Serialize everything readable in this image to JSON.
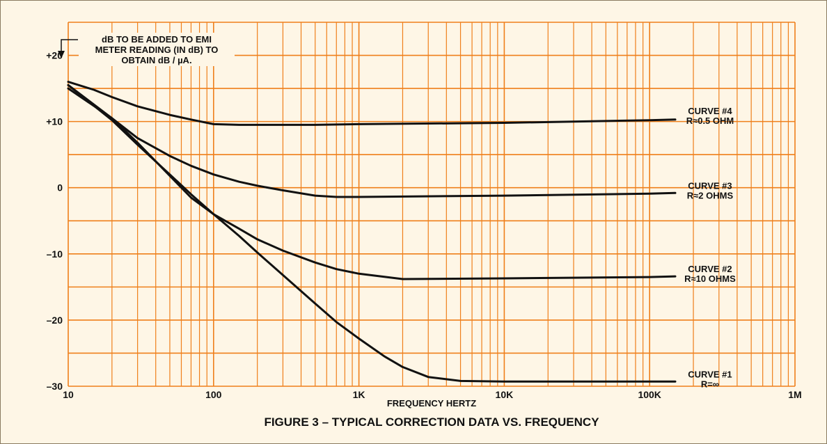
{
  "colors": {
    "background": "#fef6e6",
    "grid": "#ef7f1a",
    "curve": "#111111"
  },
  "chart_data": {
    "type": "line",
    "title": "FIGURE 3 – TYPICAL CORRECTION DATA VS. FREQUENCY",
    "xlabel": "FREQUENCY HERTZ",
    "ylabel": "",
    "x_scale": "log",
    "xlim": [
      10,
      1000000
    ],
    "ylim": [
      -30,
      25
    ],
    "grid": true,
    "x_ticks": [
      {
        "value": 10,
        "label": "10"
      },
      {
        "value": 100,
        "label": "100"
      },
      {
        "value": 1000,
        "label": "1K"
      },
      {
        "value": 10000,
        "label": "10K"
      },
      {
        "value": 100000,
        "label": "100K"
      },
      {
        "value": 1000000,
        "label": "1M"
      }
    ],
    "y_ticks": [
      {
        "value": 20,
        "label": "+20"
      },
      {
        "value": 10,
        "label": "+10"
      },
      {
        "value": 0,
        "label": "0"
      },
      {
        "value": -10,
        "label": "–10"
      },
      {
        "value": -20,
        "label": "–20"
      },
      {
        "value": -30,
        "label": "–30"
      }
    ],
    "annotation": {
      "lines": [
        "dB TO BE ADDED TO EMI",
        "METER READING (IN dB) TO",
        "OBTAIN dB / µA."
      ]
    },
    "series": [
      {
        "name": "CURVE #4",
        "label_lines": [
          "CURVE #4",
          "R≈0.5 OHM"
        ],
        "x": [
          10,
          15,
          20,
          30,
          50,
          70,
          100,
          150,
          200,
          500,
          1000,
          10000,
          100000,
          150000
        ],
        "y": [
          16,
          14.8,
          13.7,
          12.3,
          11,
          10.3,
          9.6,
          9.5,
          9.5,
          9.5,
          9.6,
          9.8,
          10.2,
          10.3
        ]
      },
      {
        "name": "CURVE #3",
        "label_lines": [
          "CURVE #3",
          "R≈2 OHMS"
        ],
        "x": [
          10,
          20,
          30,
          50,
          70,
          100,
          150,
          200,
          300,
          500,
          700,
          1000,
          10000,
          100000,
          150000
        ],
        "y": [
          15,
          10.5,
          7.5,
          4.8,
          3.3,
          2,
          0.9,
          0.3,
          -0.4,
          -1.2,
          -1.4,
          -1.4,
          -1.2,
          -0.9,
          -0.8
        ]
      },
      {
        "name": "CURVE #2",
        "label_lines": [
          "CURVE #2",
          "R≈10 OHMS"
        ],
        "x": [
          10,
          20,
          30,
          50,
          70,
          100,
          150,
          200,
          300,
          500,
          700,
          1000,
          2000,
          10000,
          100000,
          150000
        ],
        "y": [
          15.5,
          10.5,
          6.8,
          1.8,
          -1.5,
          -4,
          -6.2,
          -7.8,
          -9.5,
          -11.3,
          -12.3,
          -13,
          -13.8,
          -13.7,
          -13.5,
          -13.4
        ]
      },
      {
        "name": "CURVE #1",
        "label_lines": [
          "CURVE #1",
          "R=∞"
        ],
        "x": [
          10,
          20,
          30,
          50,
          70,
          100,
          150,
          200,
          300,
          500,
          700,
          1000,
          1500,
          2000,
          3000,
          5000,
          10000,
          100000,
          150000
        ],
        "y": [
          15.5,
          10.2,
          6.5,
          2,
          -1,
          -4,
          -7.3,
          -9.8,
          -13.2,
          -17.5,
          -20.3,
          -22.8,
          -25.5,
          -27.1,
          -28.6,
          -29.2,
          -29.3,
          -29.3,
          -29.3
        ]
      }
    ]
  }
}
